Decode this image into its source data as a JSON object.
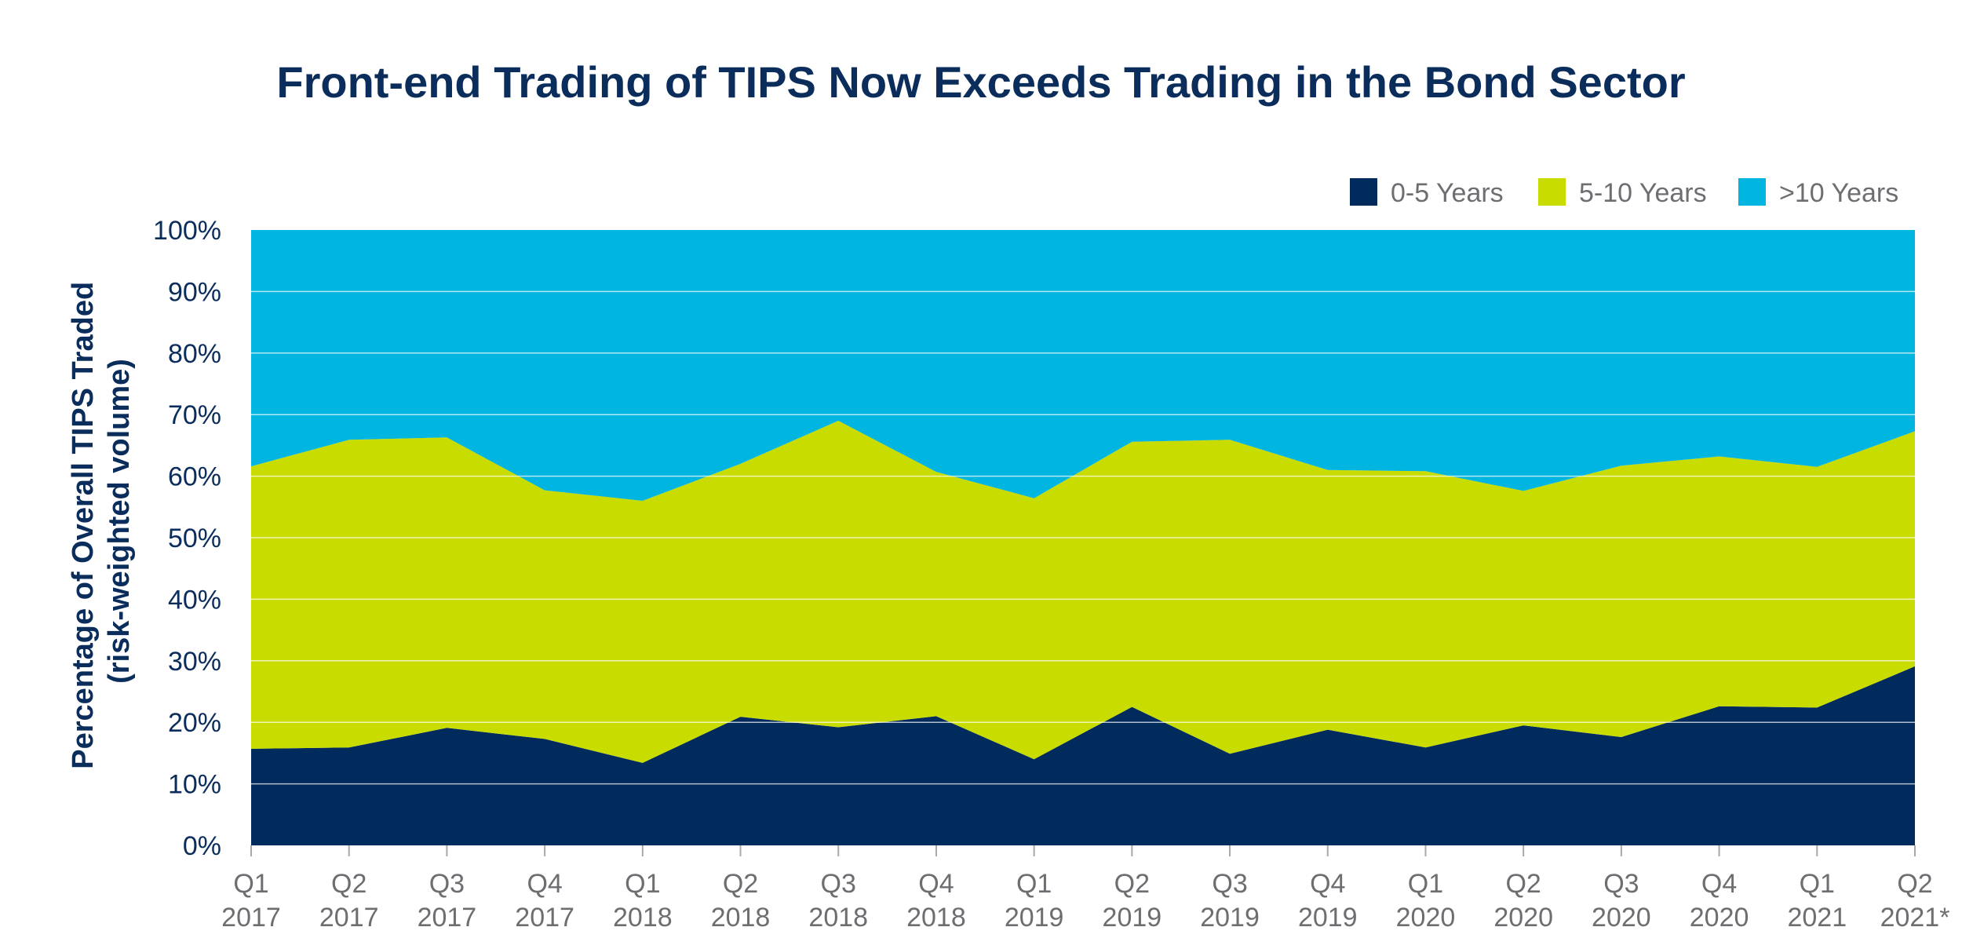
{
  "chart_data": {
    "type": "area",
    "stacked": true,
    "title": "Front-end Trading of TIPS Now Exceeds Trading in the Bond Sector",
    "ylabel_line1": "Percentage of Overall TIPS Traded",
    "ylabel_line2": "(risk-weighted volume)",
    "ylim": [
      0,
      100
    ],
    "y_ticks": [
      "0%",
      "10%",
      "20%",
      "30%",
      "40%",
      "50%",
      "60%",
      "70%",
      "80%",
      "90%",
      "100%"
    ],
    "grid": true,
    "legend_position": "top-right",
    "categories": [
      [
        "Q1",
        "2017"
      ],
      [
        "Q2",
        "2017"
      ],
      [
        "Q3",
        "2017"
      ],
      [
        "Q4",
        "2017"
      ],
      [
        "Q1",
        "2018"
      ],
      [
        "Q2",
        "2018"
      ],
      [
        "Q3",
        "2018"
      ],
      [
        "Q4",
        "2018"
      ],
      [
        "Q1",
        "2019"
      ],
      [
        "Q2",
        "2019"
      ],
      [
        "Q3",
        "2019"
      ],
      [
        "Q4",
        "2019"
      ],
      [
        "Q1",
        "2020"
      ],
      [
        "Q2",
        "2020"
      ],
      [
        "Q3",
        "2020"
      ],
      [
        "Q4",
        "2020"
      ],
      [
        "Q1",
        "2021"
      ],
      [
        "Q2",
        "2021*"
      ]
    ],
    "series": [
      {
        "name": "0-5 Years",
        "color": "#002b5c",
        "values": [
          15.7,
          15.9,
          19.1,
          17.3,
          13.4,
          20.9,
          19.2,
          21.0,
          14.0,
          22.5,
          14.9,
          18.8,
          15.9,
          19.5,
          17.6,
          22.6,
          22.4,
          29.1
        ]
      },
      {
        "name": "5-10 Years",
        "color": "#c8dc00",
        "values": [
          45.9,
          50.0,
          47.2,
          40.4,
          42.6,
          41.1,
          49.8,
          39.7,
          42.4,
          43.1,
          51.0,
          42.2,
          44.9,
          38.1,
          44.1,
          40.6,
          39.1,
          38.2
        ]
      },
      {
        "name": ">10 Years",
        "color": "#00b5e0",
        "values": [
          38.4,
          34.1,
          33.7,
          42.3,
          44.0,
          38.0,
          31.0,
          39.3,
          43.6,
          34.4,
          34.1,
          39.0,
          39.2,
          42.4,
          38.3,
          36.8,
          38.5,
          32.7
        ]
      }
    ]
  }
}
